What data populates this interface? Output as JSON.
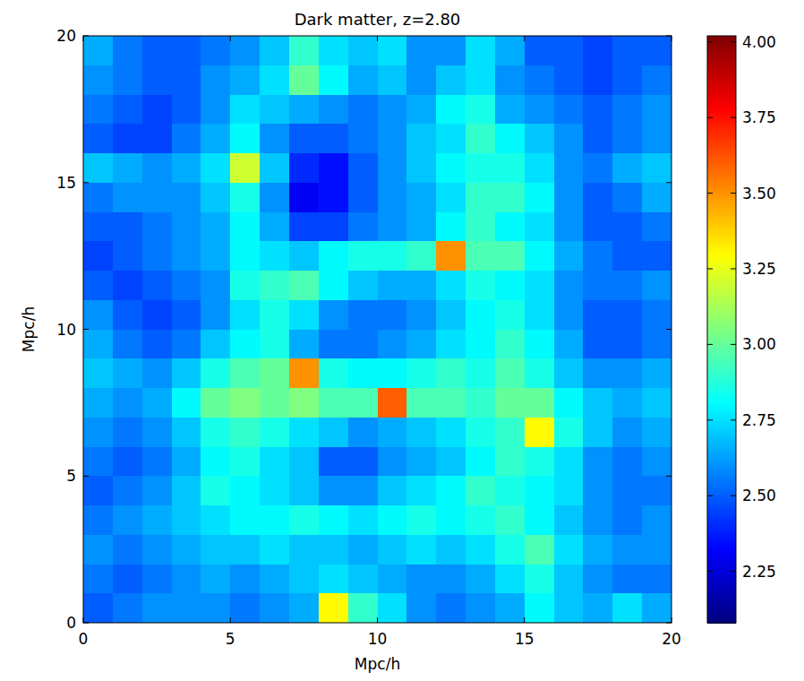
{
  "chart_data": {
    "type": "heatmap",
    "title": "Dark matter, z=2.80",
    "x_label": "Mpc/h",
    "y_label": "Mpc/h",
    "xlim": [
      0,
      20
    ],
    "ylim": [
      0,
      20
    ],
    "xticks": [
      0,
      5,
      10,
      15,
      20
    ],
    "yticks": [
      0,
      5,
      10,
      15,
      20
    ],
    "color": "jet",
    "cells": [
      [
        2.65,
        2.55,
        2.5,
        2.5,
        2.55,
        2.6,
        2.7,
        2.9,
        2.75,
        2.7,
        2.75,
        2.6,
        2.6,
        2.75,
        2.65,
        2.5,
        2.5,
        2.45,
        2.5,
        2.5
      ],
      [
        2.6,
        2.55,
        2.5,
        2.5,
        2.6,
        2.65,
        2.75,
        3.0,
        2.8,
        2.65,
        2.7,
        2.6,
        2.7,
        2.75,
        2.6,
        2.55,
        2.5,
        2.45,
        2.5,
        2.55
      ],
      [
        2.55,
        2.5,
        2.45,
        2.5,
        2.6,
        2.75,
        2.7,
        2.65,
        2.6,
        2.55,
        2.6,
        2.65,
        2.8,
        2.85,
        2.65,
        2.6,
        2.55,
        2.5,
        2.55,
        2.6
      ],
      [
        2.5,
        2.45,
        2.45,
        2.55,
        2.65,
        2.8,
        2.6,
        2.5,
        2.5,
        2.55,
        2.6,
        2.7,
        2.75,
        2.9,
        2.8,
        2.7,
        2.6,
        2.5,
        2.55,
        2.6
      ],
      [
        2.7,
        2.65,
        2.6,
        2.65,
        2.75,
        3.2,
        2.7,
        2.4,
        2.35,
        2.5,
        2.6,
        2.7,
        2.8,
        2.85,
        2.85,
        2.75,
        2.6,
        2.55,
        2.65,
        2.7
      ],
      [
        2.55,
        2.6,
        2.6,
        2.6,
        2.7,
        2.85,
        2.6,
        2.3,
        2.35,
        2.5,
        2.6,
        2.65,
        2.75,
        2.9,
        2.9,
        2.8,
        2.6,
        2.5,
        2.55,
        2.65
      ],
      [
        2.5,
        2.5,
        2.55,
        2.6,
        2.65,
        2.8,
        2.65,
        2.45,
        2.45,
        2.55,
        2.6,
        2.65,
        2.8,
        2.9,
        2.8,
        2.75,
        2.6,
        2.5,
        2.5,
        2.55
      ],
      [
        2.45,
        2.5,
        2.55,
        2.6,
        2.65,
        2.8,
        2.75,
        2.7,
        2.8,
        2.85,
        2.85,
        2.9,
        3.5,
        2.95,
        2.95,
        2.8,
        2.65,
        2.55,
        2.5,
        2.5
      ],
      [
        2.5,
        2.45,
        2.5,
        2.55,
        2.6,
        2.85,
        2.9,
        2.95,
        2.8,
        2.7,
        2.65,
        2.65,
        2.75,
        2.85,
        2.8,
        2.75,
        2.6,
        2.55,
        2.55,
        2.6
      ],
      [
        2.6,
        2.5,
        2.45,
        2.5,
        2.6,
        2.75,
        2.85,
        2.75,
        2.6,
        2.55,
        2.55,
        2.6,
        2.7,
        2.8,
        2.85,
        2.75,
        2.6,
        2.5,
        2.5,
        2.55
      ],
      [
        2.65,
        2.55,
        2.5,
        2.55,
        2.7,
        2.8,
        2.85,
        2.65,
        2.55,
        2.55,
        2.6,
        2.65,
        2.75,
        2.8,
        2.9,
        2.8,
        2.65,
        2.5,
        2.5,
        2.55
      ],
      [
        2.7,
        2.65,
        2.6,
        2.7,
        2.85,
        2.95,
        3.0,
        3.5,
        2.85,
        2.8,
        2.8,
        2.85,
        2.9,
        2.85,
        2.95,
        2.85,
        2.7,
        2.6,
        2.6,
        2.65
      ],
      [
        2.65,
        2.6,
        2.65,
        2.8,
        3.0,
        3.05,
        3.0,
        3.05,
        2.95,
        2.95,
        3.6,
        2.95,
        2.95,
        2.9,
        3.0,
        3.0,
        2.8,
        2.7,
        2.65,
        2.7
      ],
      [
        2.6,
        2.55,
        2.6,
        2.7,
        2.85,
        2.9,
        2.85,
        2.75,
        2.7,
        2.6,
        2.65,
        2.7,
        2.75,
        2.85,
        2.9,
        3.3,
        2.85,
        2.7,
        2.6,
        2.65
      ],
      [
        2.55,
        2.5,
        2.55,
        2.65,
        2.8,
        2.85,
        2.75,
        2.7,
        2.5,
        2.5,
        2.6,
        2.65,
        2.7,
        2.8,
        2.9,
        2.85,
        2.75,
        2.6,
        2.55,
        2.6
      ],
      [
        2.5,
        2.55,
        2.6,
        2.7,
        2.85,
        2.8,
        2.75,
        2.7,
        2.6,
        2.6,
        2.7,
        2.75,
        2.8,
        2.9,
        2.85,
        2.8,
        2.75,
        2.6,
        2.55,
        2.55
      ],
      [
        2.55,
        2.6,
        2.65,
        2.7,
        2.75,
        2.8,
        2.8,
        2.85,
        2.8,
        2.75,
        2.8,
        2.85,
        2.8,
        2.85,
        2.9,
        2.8,
        2.7,
        2.6,
        2.55,
        2.6
      ],
      [
        2.6,
        2.55,
        2.6,
        2.65,
        2.7,
        2.7,
        2.75,
        2.7,
        2.7,
        2.65,
        2.7,
        2.75,
        2.7,
        2.75,
        2.85,
        2.95,
        2.75,
        2.65,
        2.6,
        2.6
      ],
      [
        2.55,
        2.5,
        2.55,
        2.6,
        2.65,
        2.6,
        2.65,
        2.7,
        2.75,
        2.7,
        2.65,
        2.6,
        2.6,
        2.65,
        2.75,
        2.85,
        2.7,
        2.6,
        2.55,
        2.55
      ],
      [
        2.5,
        2.55,
        2.6,
        2.6,
        2.6,
        2.55,
        2.6,
        2.65,
        3.3,
        2.9,
        2.75,
        2.6,
        2.55,
        2.6,
        2.65,
        2.8,
        2.7,
        2.65,
        2.75,
        2.65
      ]
    ],
    "colorbar_range": [
      2.08,
      4.02
    ],
    "colorbar_ticks": [
      {
        "value": 2.25,
        "label": "2.25"
      },
      {
        "value": 2.5,
        "label": "2.50"
      },
      {
        "value": 2.75,
        "label": "2.75"
      },
      {
        "value": 3.0,
        "label": "3.00"
      },
      {
        "value": 3.25,
        "label": "3.25"
      },
      {
        "value": 3.5,
        "label": "3.50"
      },
      {
        "value": 3.75,
        "label": "3.75"
      },
      {
        "value": 4.0,
        "label": "4.00"
      }
    ]
  }
}
